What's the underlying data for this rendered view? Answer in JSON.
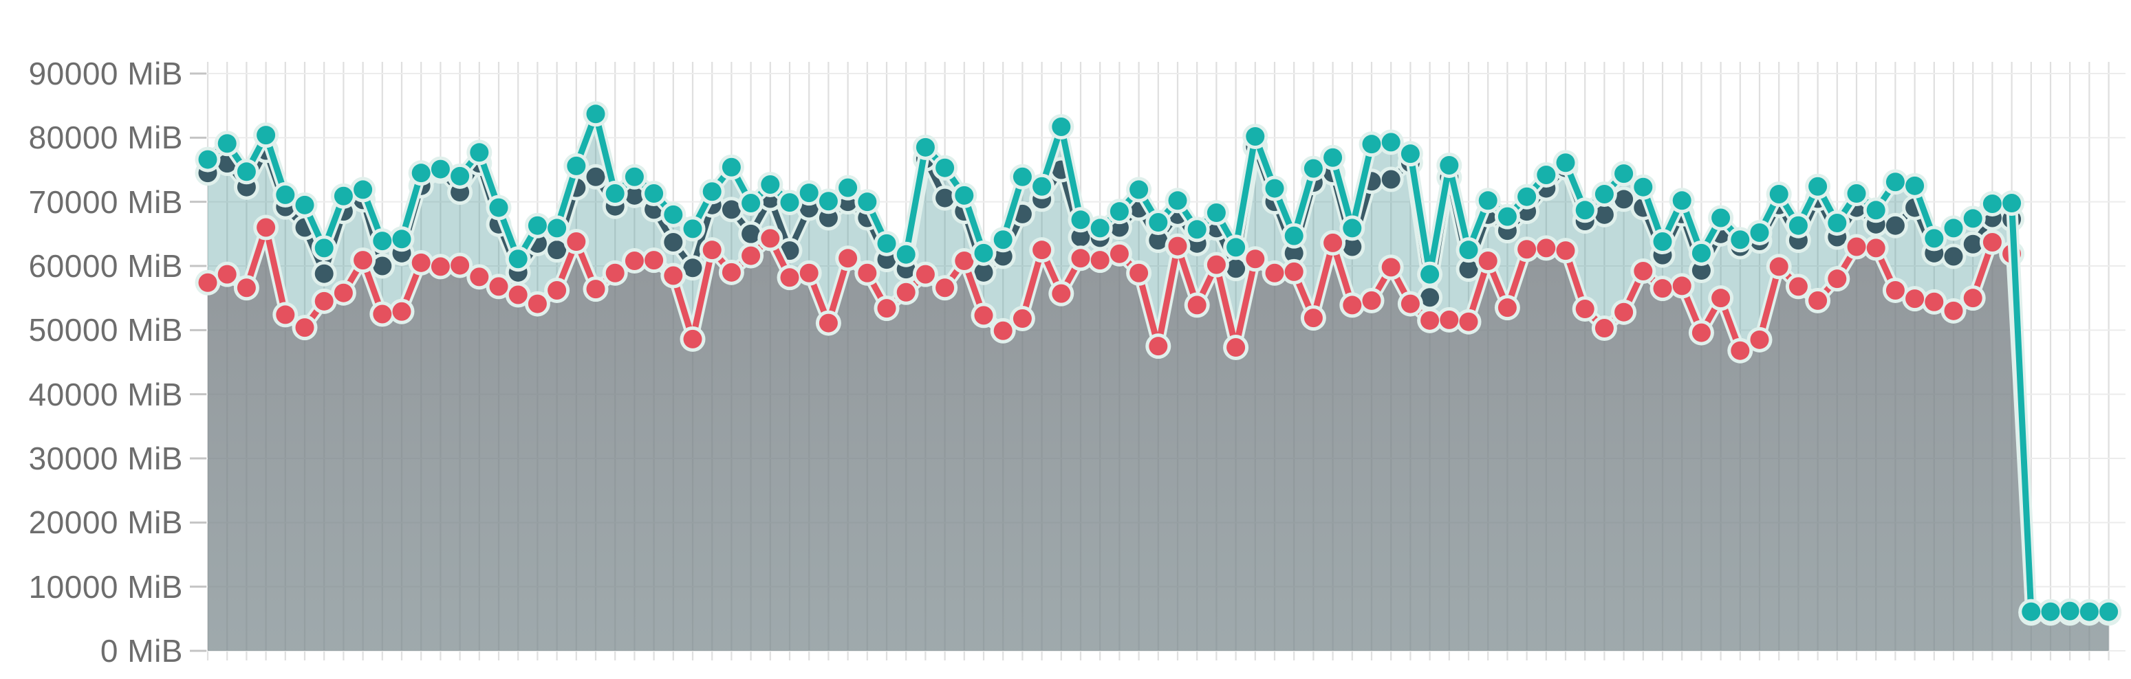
{
  "chart_data": {
    "type": "line",
    "title": "",
    "unit": "MiB",
    "y_axis": {
      "min": 0,
      "max": 91800,
      "tick_step": 10000,
      "tick_labels": [
        "0 MiB",
        "10000 MiB",
        "20000 MiB",
        "30000 MiB",
        "40000 MiB",
        "50000 MiB",
        "60000 MiB",
        "70000 MiB",
        "80000 MiB",
        "90000 MiB"
      ]
    },
    "x_axis": {
      "point_count": 99,
      "tick_labels_visible": false
    },
    "legend": false,
    "grid": true,
    "marker_style": "filled-circle-with-light-halo",
    "colors": {
      "teal": "#16b1ab",
      "dark_slate": "#3a5a66",
      "red": "#e5515e",
      "halo": "#e0f0ec",
      "teal_area": "rgba(88,158,158,0.38)",
      "gray_area_top": "rgba(122,116,122,0.66)",
      "gray_area_bottom": "rgba(130,125,131,0.52)",
      "grid_vertical": "#dfdfdf",
      "grid_horizontal": "#ececec",
      "axis_tick": "#c4c4c4",
      "label_text": "#6d6d6d"
    },
    "series": [
      {
        "name": "teal-series",
        "type": "line+area",
        "color": "#16b1ab",
        "area_fill": "rgba(88,158,158,0.38)",
        "marker": "circle",
        "values": [
          76600,
          79100,
          74700,
          80400,
          71100,
          69500,
          62800,
          70900,
          71900,
          63900,
          64200,
          74500,
          75100,
          74000,
          77700,
          69100,
          61100,
          66300,
          65900,
          75600,
          83700,
          71300,
          73900,
          71300,
          68000,
          65800,
          71600,
          75400,
          69800,
          72700,
          69900,
          71400,
          70100,
          72200,
          70000,
          63500,
          61800,
          78500,
          75300,
          71000,
          62000,
          64100,
          73900,
          72400,
          81700,
          67200,
          65900,
          68500,
          71900,
          66800,
          70200,
          65700,
          68300,
          62900,
          80200,
          72100,
          64700,
          75200,
          76900,
          65900,
          79000,
          79300,
          77500,
          58700,
          75700,
          62500,
          70200,
          67700,
          70800,
          74200,
          76100,
          68700,
          71200,
          74400,
          72300,
          63800,
          70200,
          62000,
          67500,
          64100,
          65200,
          71200,
          66300,
          72400,
          66700,
          71300,
          68700,
          73100,
          72500,
          64300,
          65900,
          67400,
          69700,
          69800,
          6100,
          6100,
          6200,
          6100,
          6100
        ]
      },
      {
        "name": "dark-slate-series",
        "type": "line",
        "color": "#3a5a66",
        "marker": "circle",
        "values": [
          74500,
          76000,
          72300,
          78000,
          69200,
          66000,
          58800,
          68500,
          70300,
          60000,
          62000,
          72500,
          74800,
          71500,
          76000,
          66500,
          59000,
          63500,
          62500,
          72200,
          73900,
          69300,
          71000,
          68800,
          63700,
          59700,
          69500,
          68800,
          65000,
          70500,
          62400,
          69000,
          67500,
          70000,
          67500,
          61000,
          59500,
          76700,
          70600,
          68500,
          59000,
          61500,
          68100,
          70400,
          75000,
          64500,
          64400,
          66000,
          69000,
          64000,
          68000,
          63500,
          65900,
          59600,
          78600,
          70000,
          62000,
          73000,
          74500,
          63000,
          73200,
          73500,
          76100,
          55100,
          73800,
          59500,
          68000,
          65500,
          68500,
          72100,
          75300,
          67000,
          68000,
          70400,
          69100,
          61700,
          68100,
          59300,
          65000,
          63000,
          63900,
          69500,
          64000,
          70500,
          64500,
          69100,
          66500,
          66300,
          69100,
          62000,
          61500,
          63400,
          67500,
          67300,
          5900,
          5900,
          5900,
          5900,
          5900
        ]
      },
      {
        "name": "red-series",
        "type": "line+area",
        "color": "#e5515e",
        "area_fill": "gray-gradient",
        "marker": "circle",
        "values": [
          57400,
          58700,
          56600,
          66000,
          52400,
          50400,
          54500,
          55800,
          60900,
          52500,
          52900,
          60500,
          59900,
          60100,
          58300,
          56800,
          55500,
          54100,
          56200,
          63800,
          56400,
          58900,
          60800,
          60900,
          58500,
          48600,
          62500,
          59000,
          61600,
          64300,
          58200,
          58900,
          51100,
          61200,
          58900,
          53400,
          55900,
          58700,
          56600,
          60800,
          52300,
          49900,
          51800,
          62500,
          55700,
          61200,
          60900,
          61900,
          58900,
          47500,
          63100,
          53900,
          60200,
          47300,
          61100,
          58900,
          59100,
          51900,
          63600,
          53900,
          54600,
          59800,
          54100,
          51500,
          51600,
          51300,
          60800,
          53500,
          62600,
          62800,
          62400,
          53300,
          50300,
          52800,
          59200,
          56500,
          56900,
          49600,
          55000,
          46800,
          48500,
          59900,
          56800,
          54600,
          58000,
          63000,
          62800,
          56200,
          54900,
          54400,
          53000,
          55000,
          63700,
          61900,
          5900,
          5900,
          5900,
          5900,
          5900
        ]
      }
    ]
  }
}
